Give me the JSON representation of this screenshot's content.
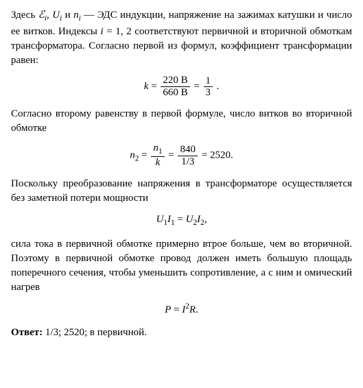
{
  "p1_pre": "Здесь ",
  "p1_var1": "ℰ",
  "p1_sub1": "i",
  "p1_sep1": ", ",
  "p1_var2": "U",
  "p1_sub2": "i",
  "p1_sep2": " и ",
  "p1_var3": "n",
  "p1_sub3": "i",
  "p1_post1": " — ЭДС индукции, напряжение на зажимах катушки и число ее витков. Индексы ",
  "p1_var4": "i",
  "p1_post2": " = 1, 2 соответствуют первичной и вторичной обмоткам трансформатора. Согласно первой из формул, коэффициент трансформации равен:",
  "f1_lhs": "k",
  "f1_eq1": " = ",
  "f1_num1": "220 В",
  "f1_den1": "660 В",
  "f1_eq2": " = ",
  "f1_num2": "1",
  "f1_den2": "3",
  "f1_end": " .",
  "p2": "Согласно второму равенству в первой формуле, число витков во вторичной обмотке",
  "f2_lhs_base": "n",
  "f2_lhs_sub": "2",
  "f2_eq1": " = ",
  "f2_num1_base": "n",
  "f2_num1_sub": "1",
  "f2_den1": "k",
  "f2_eq2": " = ",
  "f2_num2": "840",
  "f2_den2": "1/3",
  "f2_eq3": " = ",
  "f2_res": "2520.",
  "p3": "Поскольку преобразование напряжения в трансформаторе осуществляется без заметной потери мощности",
  "f3_u1": "U",
  "f3_u1s": "1",
  "f3_i1": "I",
  "f3_i1s": "1",
  "f3_eq": " = ",
  "f3_u2": "U",
  "f3_u2s": "2",
  "f3_i2": "I",
  "f3_i2s": "2",
  "f3_end": ",",
  "p4": "сила тока в первичной обмотке примерно втрое больше, чем во вторичной. Поэтому в первичной обмотке провод должен иметь большую площадь поперечного сечения, чтобы уменьшить сопротивление, а с ним и омический нагрев",
  "f4_p": "P",
  "f4_eq": " = ",
  "f4_i": "I",
  "f4_exp": "2",
  "f4_r": "R",
  "f4_end": ".",
  "answer_label": "Ответ: ",
  "answer_text": "1/3; 2520; в первичной."
}
